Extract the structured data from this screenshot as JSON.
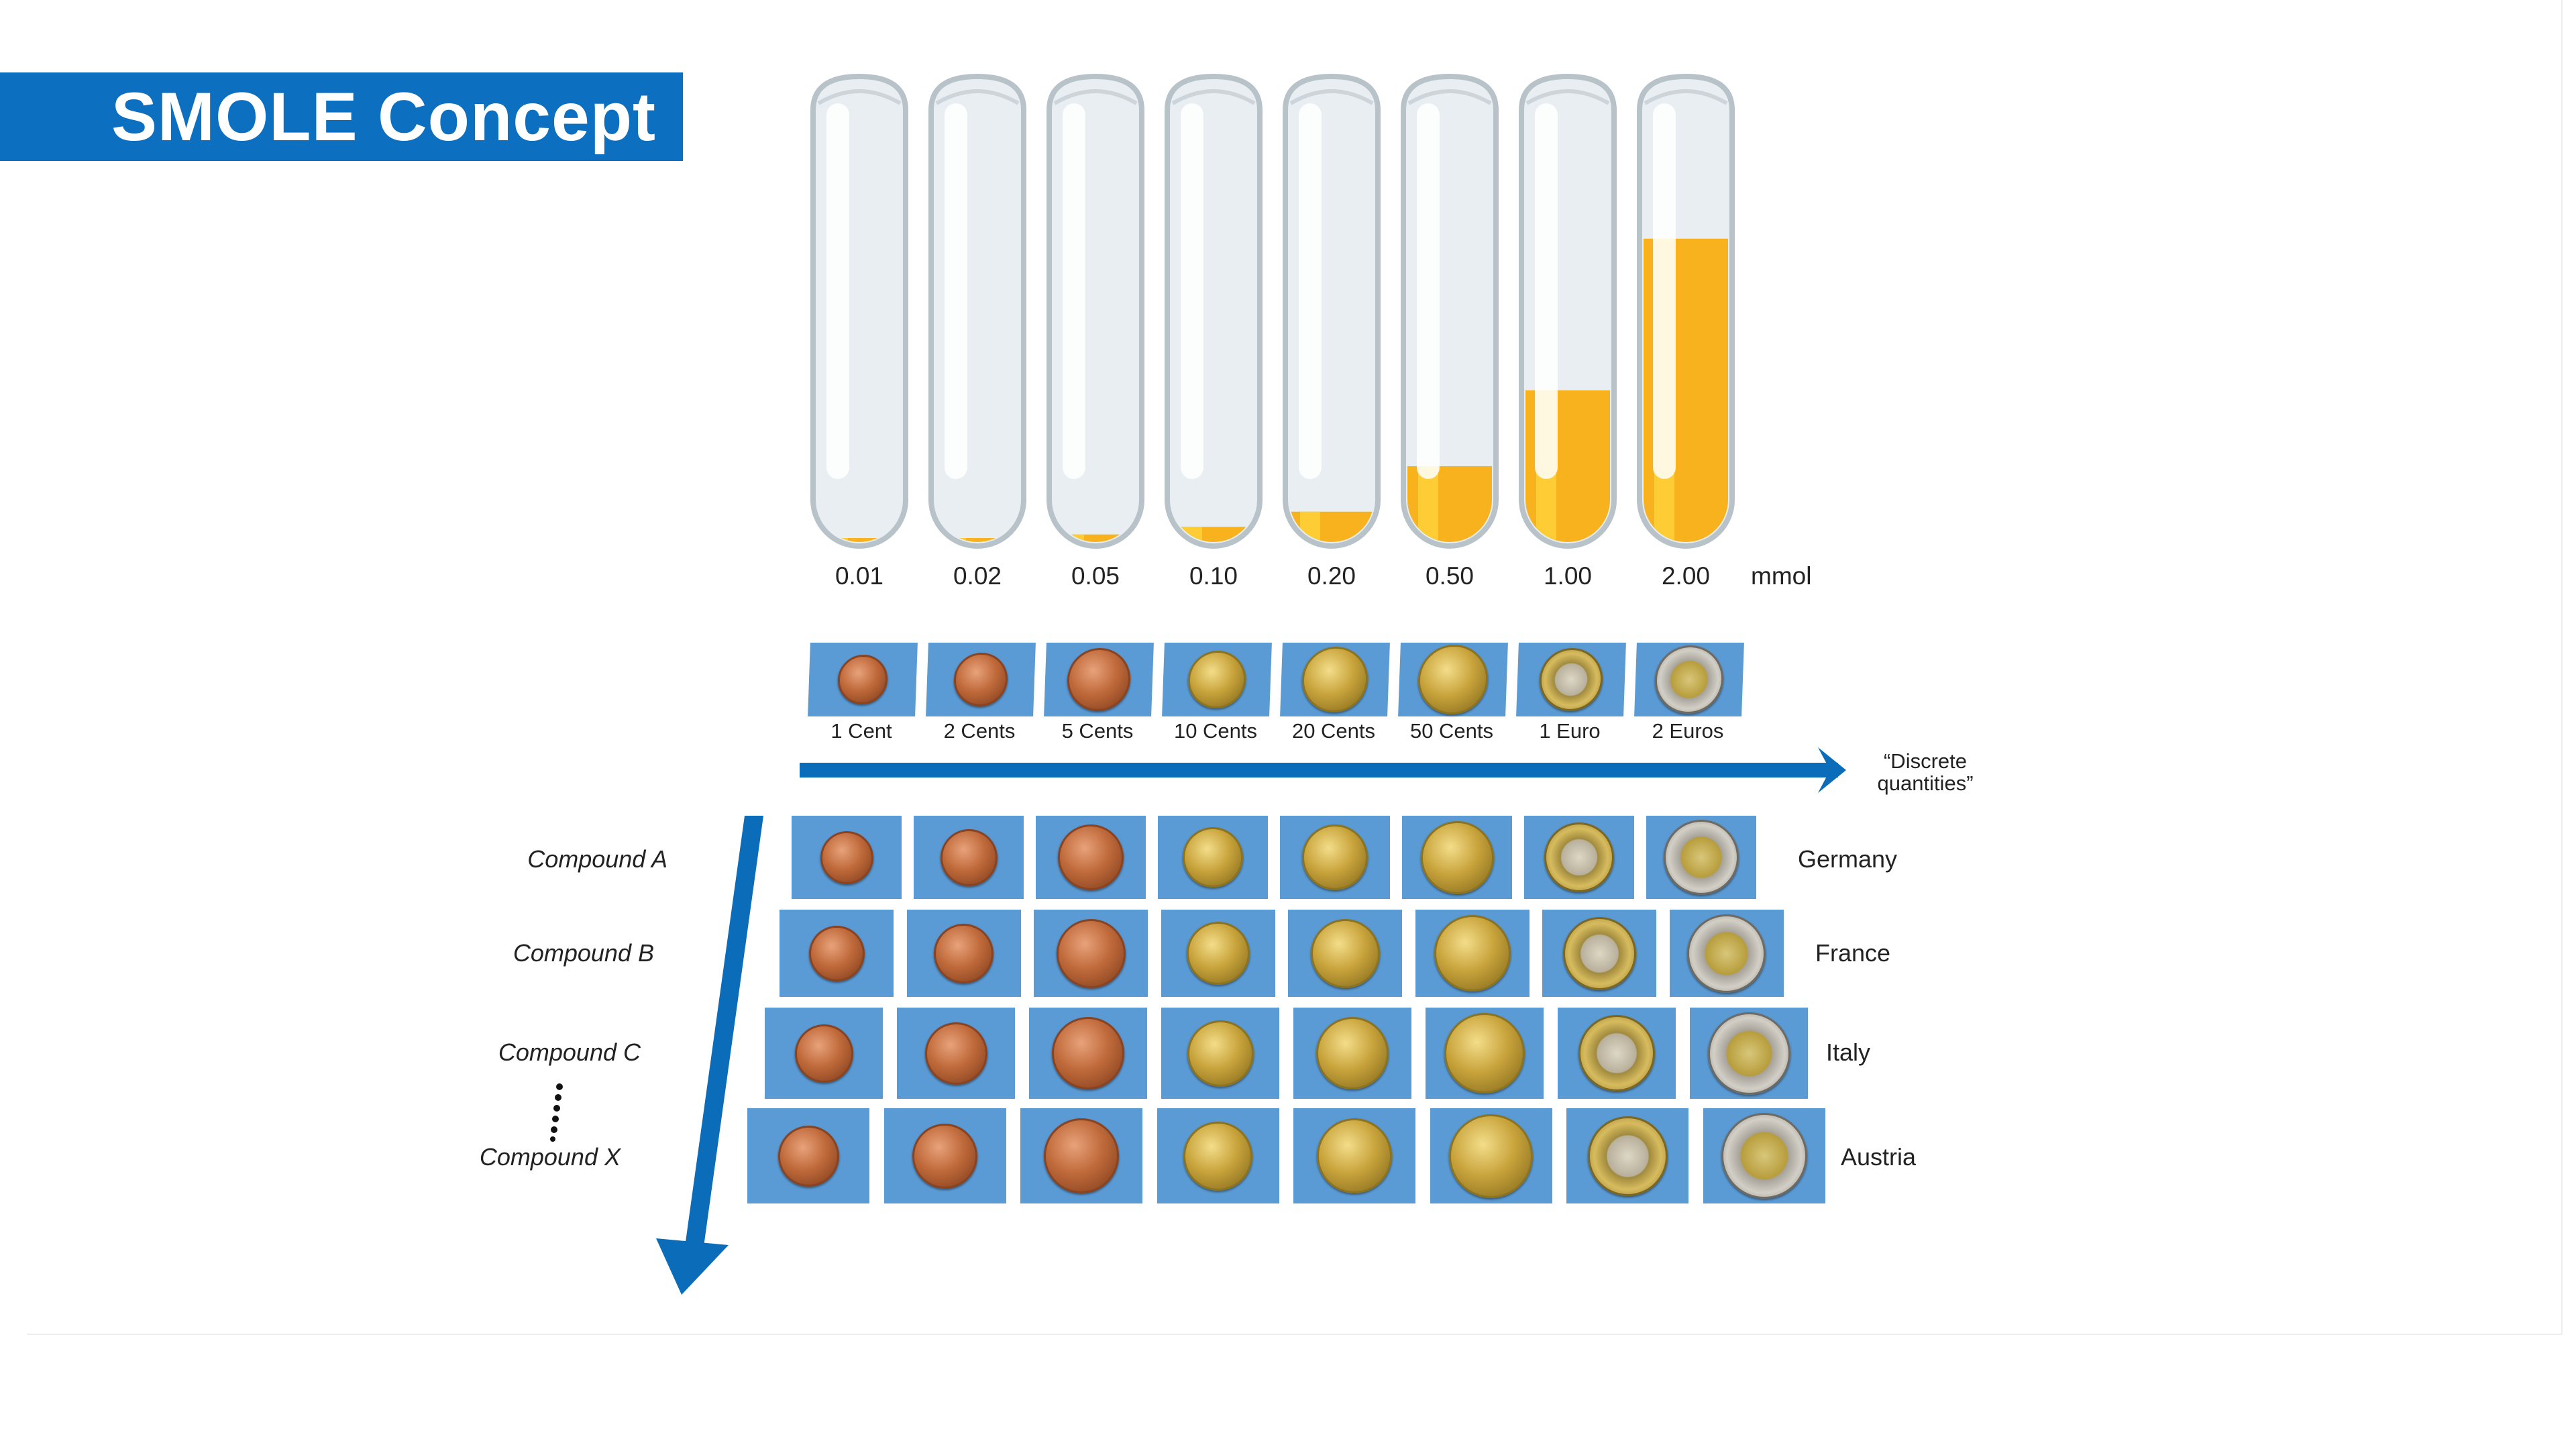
{
  "title": "SMOLE Concept",
  "tubes": {
    "unit": "mmol",
    "max_value": 2.0,
    "items": [
      {
        "label": "0.01",
        "value": 0.01
      },
      {
        "label": "0.02",
        "value": 0.02
      },
      {
        "label": "0.05",
        "value": 0.05
      },
      {
        "label": "0.10",
        "value": 0.1
      },
      {
        "label": "0.20",
        "value": 0.2
      },
      {
        "label": "0.50",
        "value": 0.5
      },
      {
        "label": "1.00",
        "value": 1.0
      },
      {
        "label": "2.00",
        "value": 2.0
      }
    ]
  },
  "coins": [
    {
      "name": "1 Cent",
      "metal": "copper"
    },
    {
      "name": "2 Cents",
      "metal": "copper"
    },
    {
      "name": "5 Cents",
      "metal": "copper"
    },
    {
      "name": "10 Cents",
      "metal": "gold"
    },
    {
      "name": "20 Cents",
      "metal": "gold"
    },
    {
      "name": "50 Cents",
      "metal": "gold"
    },
    {
      "name": "1 Euro",
      "metal": "bimetal-silver"
    },
    {
      "name": "2 Euros",
      "metal": "bimetal-gold"
    }
  ],
  "horizontal_axis_label_line1": "“Discrete",
  "horizontal_axis_label_line2": "quantities”",
  "rows": [
    {
      "compound": "Compound A",
      "country": "Germany"
    },
    {
      "compound": "Compound B",
      "country": "France"
    },
    {
      "compound": "Compound C",
      "country": "Italy"
    },
    {
      "compound": "Compound X",
      "country": "Austria"
    }
  ],
  "colors": {
    "banner": "#0c6fbf",
    "arrow": "#0b6cb9",
    "tile": "#5b9bd5",
    "liquid": "#f7b21e",
    "liquid_light": "#ffd23a"
  }
}
